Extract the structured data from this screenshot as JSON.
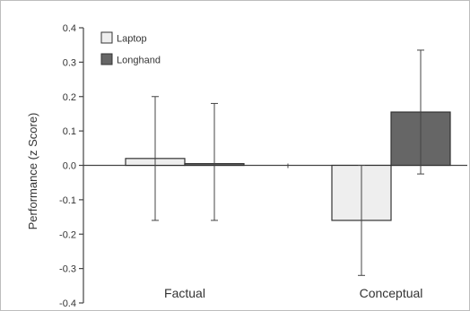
{
  "chart_data": {
    "type": "bar",
    "title": "",
    "xlabel": "",
    "ylabel": "Performance (z Score)",
    "ylim": [
      -0.4,
      0.4
    ],
    "yticks": [
      "0.4",
      "0.3",
      "0.2",
      "0.1",
      "0.0",
      "-0.1",
      "-0.2",
      "-0.3",
      "-0.4"
    ],
    "categories": [
      "Factual",
      "Conceptual"
    ],
    "series": [
      {
        "name": "Laptop",
        "values": [
          0.02,
          -0.16
        ],
        "err_low": [
          -0.16,
          -0.32
        ],
        "err_high": [
          0.2,
          0.0
        ],
        "color": "#eeeeee"
      },
      {
        "name": "Longhand",
        "values": [
          0.005,
          0.155
        ],
        "err_low": [
          -0.16,
          -0.025
        ],
        "err_high": [
          0.18,
          0.335
        ],
        "color": "#666666"
      }
    ],
    "legend": "top-left",
    "grid": false
  }
}
